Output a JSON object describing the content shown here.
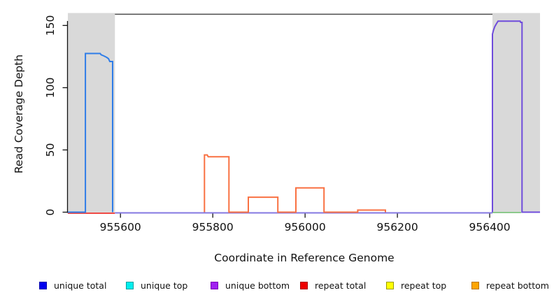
{
  "chart_data": {
    "type": "area",
    "title": "",
    "xlabel": "Coordinate in Reference Genome",
    "ylabel": "Read Coverage Depth",
    "xlim": [
      955486,
      956509
    ],
    "ylim": [
      0,
      160
    ],
    "x_ticks": [
      955600,
      955800,
      956000,
      956200,
      956400
    ],
    "y_ticks": [
      0,
      50,
      100,
      150
    ],
    "grid": false,
    "legend_position": "bottom",
    "top_border_depth": 159,
    "masked_regions": [
      {
        "start": 955486,
        "end": 955588
      },
      {
        "start": 956406,
        "end": 956509
      }
    ],
    "series": [
      {
        "name": "repeat total zero line",
        "color": "#ef4a45",
        "points": [
          [
            955486,
            0
          ],
          [
            955588,
            0
          ]
        ],
        "dy": 1.5
      },
      {
        "name": "unique bottom zero line",
        "color": "#8377e2",
        "points": [
          [
            955588,
            0
          ],
          [
            956406,
            0
          ]
        ],
        "dy": 1.0
      },
      {
        "name": "green zero line",
        "color": "#8cc98c",
        "points": [
          [
            956406,
            0
          ],
          [
            956468,
            0
          ]
        ],
        "dy": 0.5
      },
      {
        "name": "unique total left peak",
        "color": "#2f7de8",
        "points": [
          [
            955486,
            0
          ],
          [
            955524,
            0
          ],
          [
            955524,
            127.5
          ],
          [
            955556,
            127.5
          ],
          [
            955558,
            126.5
          ],
          [
            955564,
            125.5
          ],
          [
            955570,
            124.4
          ],
          [
            955574,
            123.3
          ],
          [
            955577,
            121
          ],
          [
            955583,
            121
          ],
          [
            955583,
            0
          ]
        ],
        "dy": 0
      },
      {
        "name": "repeat peaks",
        "color": "#f97142",
        "points": [
          [
            955782,
            0
          ],
          [
            955782,
            46
          ],
          [
            955788,
            46
          ],
          [
            955790,
            44.5
          ],
          [
            955835,
            44.5
          ],
          [
            955835,
            0
          ],
          [
            955877,
            0
          ],
          [
            955877,
            12
          ],
          [
            955941,
            12
          ],
          [
            955941,
            0
          ],
          [
            955980,
            0
          ],
          [
            955980,
            19.5
          ],
          [
            956041,
            19.5
          ],
          [
            956041,
            0
          ],
          [
            956114,
            0
          ],
          [
            956114,
            1.7
          ],
          [
            956174,
            1.7
          ],
          [
            956174,
            0
          ]
        ],
        "dy": 0
      },
      {
        "name": "unique bottom right peak",
        "color": "#6f4cdb",
        "points": [
          [
            956406,
            0
          ],
          [
            956406,
            143
          ],
          [
            956408,
            146
          ],
          [
            956411,
            149
          ],
          [
            956414,
            151
          ],
          [
            956418,
            153.5
          ],
          [
            956466,
            153.5
          ],
          [
            956467,
            152.5
          ],
          [
            956470,
            152.5
          ],
          [
            956470,
            0
          ],
          [
            956509,
            0
          ]
        ],
        "dy": 0
      }
    ],
    "legend": [
      {
        "label": "unique total",
        "fill": "#0000ee",
        "border": "#0000aa"
      },
      {
        "label": "unique top",
        "fill": "#00eeee",
        "border": "#00a0a0"
      },
      {
        "label": "unique bottom",
        "fill": "#a020f0",
        "border": "#7a00b8"
      },
      {
        "label": "repeat total",
        "fill": "#ee0000",
        "border": "#aa0000"
      },
      {
        "label": "repeat top",
        "fill": "#ffff00",
        "border": "#999900"
      },
      {
        "label": "repeat bottom",
        "fill": "#ffa500",
        "border": "#b87400"
      }
    ]
  },
  "colors": {
    "background": "#ffffff",
    "masked_region": "#d9d9d9",
    "top_border": "#4d4d4d",
    "axis": "#111111"
  }
}
